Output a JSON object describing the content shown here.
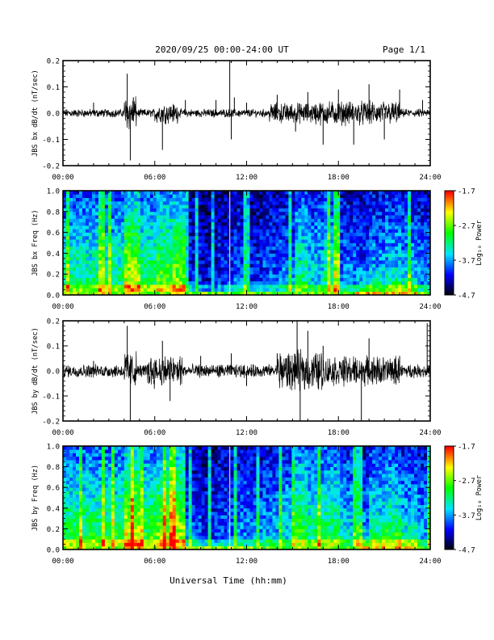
{
  "header": {
    "title": "2020/09/25  00:00-24:00 UT",
    "page": "Page 1/1"
  },
  "xlabel": "Universal Time (hh:mm)",
  "colors": {
    "background": "#ffffff",
    "axis": "#000000",
    "trace": "#000000",
    "colormap": [
      "#000000",
      "#0000ff",
      "#00e5ff",
      "#00ff00",
      "#ffff00",
      "#ff0000"
    ]
  },
  "chart_data": [
    {
      "type": "line",
      "ylabel": "JBS bx dB/dt (nT/sec)",
      "xlim": [
        0,
        24
      ],
      "ylim": [
        -0.2,
        0.2
      ],
      "xticks": [
        "00:00",
        "06:00",
        "12:00",
        "18:00",
        "24:00"
      ],
      "yticks": [
        "-0.2",
        "-0.1",
        "0.0",
        "0.1",
        "0.2"
      ],
      "series": [
        {
          "x": [
            0,
            2,
            4.2,
            4.4,
            4.6,
            6.5,
            8,
            10,
            10.9,
            11,
            11.2,
            12,
            14,
            15.2,
            16,
            17,
            18,
            19,
            20,
            21,
            22,
            23.5,
            24
          ],
          "y": [
            0.01,
            0.04,
            0.15,
            -0.18,
            0.06,
            -0.14,
            0.05,
            0.05,
            0.22,
            -0.1,
            0.06,
            0.04,
            0.07,
            -0.07,
            0.08,
            -0.12,
            0.09,
            -0.12,
            0.11,
            -0.1,
            0.09,
            0.05,
            0.04
          ]
        }
      ]
    },
    {
      "type": "heatmap",
      "ylabel": "JBS bx Freq (Hz)",
      "colorbar_label": "Log₁₀ Power",
      "colorbar_ticks": [
        "-1.7",
        "-2.7",
        "-3.7",
        "-4.7"
      ],
      "zlim": [
        -4.7,
        -1.7
      ],
      "xlim": [
        0,
        24
      ],
      "ylim": [
        0,
        1.0
      ],
      "xticks": [
        "00:00",
        "06:00",
        "12:00",
        "18:00",
        "24:00"
      ],
      "yticks": [
        "0.0",
        "0.2",
        "0.4",
        "0.6",
        "0.8",
        "1.0"
      ],
      "hours": [
        0,
        1,
        2,
        3,
        4,
        5,
        6,
        7,
        8,
        9,
        10,
        11,
        12,
        13,
        14,
        15,
        16,
        17,
        18,
        19,
        20,
        21,
        22,
        23
      ],
      "activity": [
        0.55,
        0.55,
        0.55,
        0.55,
        0.8,
        0.6,
        0.7,
        0.75,
        0.25,
        0.2,
        0.25,
        0.3,
        0.25,
        0.3,
        0.35,
        0.55,
        0.45,
        0.55,
        0.35,
        0.3,
        0.4,
        0.45,
        0.4,
        0.35
      ]
    },
    {
      "type": "line",
      "ylabel": "JBS by dB/dt (nT/sec)",
      "xlim": [
        0,
        24
      ],
      "ylim": [
        -0.2,
        0.2
      ],
      "xticks": [
        "00:00",
        "06:00",
        "12:00",
        "18:00",
        "24:00"
      ],
      "yticks": [
        "-0.2",
        "-0.1",
        "0.0",
        "0.1",
        "0.2"
      ],
      "series": [
        {
          "x": [
            0,
            2,
            4.2,
            4.4,
            6.5,
            7,
            9,
            11,
            12,
            14,
            15.3,
            15.5,
            16,
            17,
            19.5,
            20,
            22,
            23.8,
            24
          ],
          "y": [
            0.02,
            0.04,
            0.18,
            -0.22,
            0.12,
            -0.12,
            0.06,
            0.07,
            -0.06,
            0.07,
            0.2,
            -0.22,
            0.16,
            0.1,
            -0.22,
            0.13,
            0.06,
            0.19,
            0.04
          ]
        }
      ]
    },
    {
      "type": "heatmap",
      "ylabel": "JBS by Freq (Hz)",
      "colorbar_label": "Log₁₀ Power",
      "colorbar_ticks": [
        "-1.7",
        "-2.7",
        "-3.7",
        "-4.7"
      ],
      "zlim": [
        -4.7,
        -1.7
      ],
      "xlim": [
        0,
        24
      ],
      "ylim": [
        0,
        1.0
      ],
      "xticks": [
        "00:00",
        "06:00",
        "12:00",
        "18:00",
        "24:00"
      ],
      "yticks": [
        "0.0",
        "0.2",
        "0.4",
        "0.6",
        "0.8",
        "1.0"
      ],
      "hours": [
        0,
        1,
        2,
        3,
        4,
        5,
        6,
        7,
        8,
        9,
        10,
        11,
        12,
        13,
        14,
        15,
        16,
        17,
        18,
        19,
        20,
        21,
        22,
        23
      ],
      "activity": [
        0.6,
        0.6,
        0.6,
        0.6,
        0.85,
        0.65,
        0.75,
        0.8,
        0.3,
        0.25,
        0.3,
        0.35,
        0.35,
        0.4,
        0.45,
        0.65,
        0.55,
        0.6,
        0.45,
        0.35,
        0.5,
        0.55,
        0.45,
        0.4
      ]
    }
  ]
}
